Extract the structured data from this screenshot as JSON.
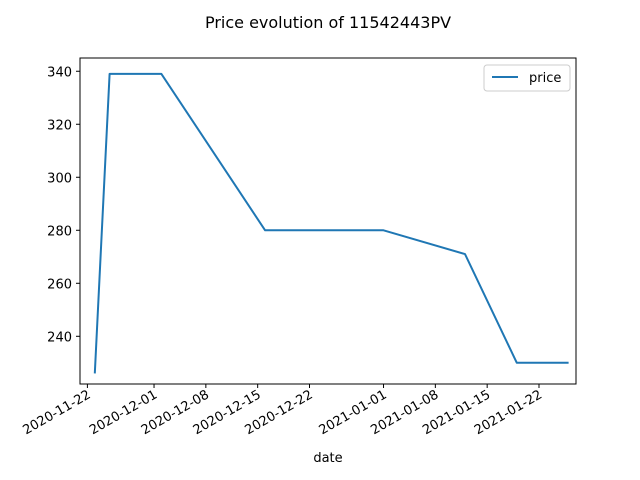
{
  "chart_data": {
    "type": "line",
    "title": "Price evolution of 11542443PV",
    "xlabel": "date",
    "ylabel": "",
    "x_is_date": true,
    "x": [
      "2020-11-23",
      "2020-11-25",
      "2020-12-02",
      "2020-12-16",
      "2021-01-01",
      "2021-01-12",
      "2021-01-19",
      "2021-01-26"
    ],
    "series": [
      {
        "name": "price",
        "values": [
          226,
          339,
          339,
          280,
          280,
          271,
          230,
          230
        ],
        "color": "#1f77b4"
      }
    ],
    "xlim": [
      "2020-11-21",
      "2021-01-27"
    ],
    "ylim": [
      222,
      345
    ],
    "x_ticks": [
      "2020-11-22",
      "2020-12-01",
      "2020-12-08",
      "2020-12-15",
      "2020-12-22",
      "2021-01-01",
      "2021-01-08",
      "2021-01-15",
      "2021-01-22"
    ],
    "y_ticks": [
      240,
      260,
      280,
      300,
      320,
      340
    ],
    "legend": {
      "position": "top-right",
      "entries": [
        "price"
      ]
    },
    "grid": false
  }
}
